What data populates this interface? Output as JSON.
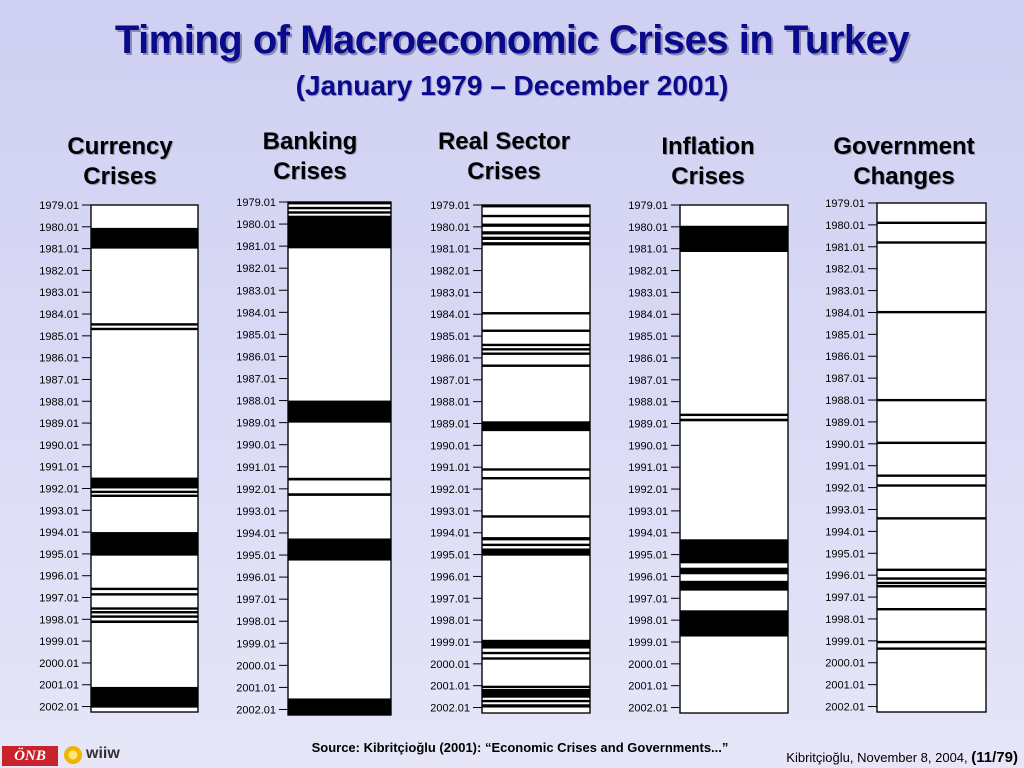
{
  "title": "Timing of Macroeconomic Crises in Turkey",
  "subtitle": "(January 1979 – December 2001)",
  "source": "Source: Kibritçioğlu (2001): “Economic Crises and Governments...”",
  "credit_text": "Kibritçioğlu, November 8, 2004,",
  "credit_page_open": "(",
  "credit_page": "11/79",
  "credit_page_close": ")",
  "logo_text": "ÖNB",
  "wiiw_text": "wiiw",
  "chart_data": [
    {
      "type": "timeline",
      "title_line1": "Currency",
      "title_line2": "Crises",
      "ticks": [
        "1979.01",
        "1980.01",
        "1981.01",
        "1982.01",
        "1983.01",
        "1984.01",
        "1985.01",
        "1986.01",
        "1987.01",
        "1988.01",
        "1989.01",
        "1990.01",
        "1991.01",
        "1992.01",
        "1993.01",
        "1994.01",
        "1995.01",
        "1996.01",
        "1997.01",
        "1998.01",
        "1999.01",
        "2000.01",
        "2001.01",
        "2002.01"
      ],
      "periods": [
        [
          1980.05,
          1981.0
        ],
        [
          1984.42,
          1984.5
        ],
        [
          1984.63,
          1984.72
        ],
        [
          1991.5,
          1992.0
        ],
        [
          1992.1,
          1992.18
        ],
        [
          1992.28,
          1992.36
        ],
        [
          1994.0,
          1995.08
        ],
        [
          1996.55,
          1996.65
        ],
        [
          1996.8,
          1996.9
        ],
        [
          1997.45,
          1997.52
        ],
        [
          1997.62,
          1997.7
        ],
        [
          1997.82,
          1997.92
        ],
        [
          1998.05,
          1998.17
        ],
        [
          2001.1,
          2002.05
        ]
      ]
    },
    {
      "type": "timeline",
      "title_line1": "Banking",
      "title_line2": "Crises",
      "ticks": [
        "1979.01",
        "1980.01",
        "1981.01",
        "1982.01",
        "1983.01",
        "1984.01",
        "1985.01",
        "1986.01",
        "1987.01",
        "1988.01",
        "1989.01",
        "1990.01",
        "1991.01",
        "1992.01",
        "1993.01",
        "1994.01",
        "1995.01",
        "1996.01",
        "1997.01",
        "1998.01",
        "1999.01",
        "2000.01",
        "2001.01",
        "2002.01"
      ],
      "periods": [
        [
          1979.0,
          1979.1
        ],
        [
          1979.22,
          1979.32
        ],
        [
          1979.42,
          1979.52
        ],
        [
          1979.62,
          1981.1
        ],
        [
          1988.0,
          1989.0
        ],
        [
          1991.5,
          1991.62
        ],
        [
          1992.2,
          1992.32
        ],
        [
          1994.25,
          1995.25
        ],
        [
          2001.5,
          2002.5
        ]
      ]
    },
    {
      "type": "timeline",
      "title_line1": "Real Sector",
      "title_line2": "Crises",
      "ticks": [
        "1979.01",
        "1980.01",
        "1981.01",
        "1982.01",
        "1983.01",
        "1984.01",
        "1985.01",
        "1986.01",
        "1987.01",
        "1988.01",
        "1989.01",
        "1990.01",
        "1991.01",
        "1992.01",
        "1993.01",
        "1994.01",
        "1995.01",
        "1996.01",
        "1997.01",
        "1998.01",
        "1999.01",
        "2000.01",
        "2001.01",
        "2002.01"
      ],
      "periods": [
        [
          1979.0,
          1979.08
        ],
        [
          1979.45,
          1979.55
        ],
        [
          1979.85,
          1980.0
        ],
        [
          1980.2,
          1980.35
        ],
        [
          1980.45,
          1980.6
        ],
        [
          1980.7,
          1980.85
        ],
        [
          1983.9,
          1984.0
        ],
        [
          1984.7,
          1984.8
        ],
        [
          1985.35,
          1985.45
        ],
        [
          1985.55,
          1985.65
        ],
        [
          1985.75,
          1985.85
        ],
        [
          1986.3,
          1986.4
        ],
        [
          1988.9,
          1989.35
        ],
        [
          1991.05,
          1991.15
        ],
        [
          1991.45,
          1991.55
        ],
        [
          1993.2,
          1993.28
        ],
        [
          1994.2,
          1994.35
        ],
        [
          1994.5,
          1994.6
        ],
        [
          1994.72,
          1995.05
        ],
        [
          1998.9,
          1999.3
        ],
        [
          1999.45,
          1999.55
        ],
        [
          1999.7,
          1999.8
        ],
        [
          2001.0,
          2001.05
        ],
        [
          2001.15,
          2001.55
        ],
        [
          2001.65,
          2001.75
        ],
        [
          2001.85,
          2002.0
        ]
      ]
    },
    {
      "type": "timeline",
      "title_line1": "Inflation",
      "title_line2": "Crises",
      "ticks": [
        "1979.01",
        "1980.01",
        "1981.01",
        "1982.01",
        "1983.01",
        "1984.01",
        "1985.01",
        "1986.01",
        "1987.01",
        "1988.01",
        "1989.01",
        "1990.01",
        "1991.01",
        "1992.01",
        "1993.01",
        "1994.01",
        "1995.01",
        "1996.01",
        "1997.01",
        "1998.01",
        "1999.01",
        "2000.01",
        "2001.01",
        "2002.01"
      ],
      "periods": [
        [
          1979.95,
          1981.15
        ],
        [
          1988.55,
          1988.62
        ],
        [
          1988.78,
          1988.9
        ],
        [
          1994.3,
          1995.4
        ],
        [
          1995.6,
          1995.9
        ],
        [
          1996.2,
          1996.65
        ],
        [
          1997.55,
          1998.75
        ]
      ]
    },
    {
      "type": "timeline",
      "title_line1": "Government",
      "title_line2": "Changes",
      "ticks": [
        "1979.01",
        "1980.01",
        "1981.01",
        "1982.01",
        "1983.01",
        "1984.01",
        "1985.01",
        "1986.01",
        "1987.01",
        "1988.01",
        "1989.01",
        "1990.01",
        "1991.01",
        "1992.01",
        "1993.01",
        "1994.01",
        "1995.01",
        "1996.01",
        "1997.01",
        "1998.01",
        "1999.01",
        "2000.01",
        "2001.01",
        "2002.01"
      ],
      "periods": [
        [
          1979.85,
          1979.93
        ],
        [
          1980.75,
          1980.85
        ],
        [
          1983.93,
          1984.0
        ],
        [
          1987.95,
          1988.05
        ],
        [
          1989.9,
          1990.0
        ],
        [
          1991.4,
          1991.5
        ],
        [
          1991.85,
          1991.95
        ],
        [
          1993.35,
          1993.42
        ],
        [
          1995.7,
          1995.8
        ],
        [
          1996.1,
          1996.18
        ],
        [
          1996.3,
          1996.38
        ],
        [
          1996.45,
          1996.53
        ],
        [
          1997.5,
          1997.6
        ],
        [
          1999.0,
          1999.08
        ],
        [
          1999.3,
          1999.4
        ]
      ]
    }
  ]
}
